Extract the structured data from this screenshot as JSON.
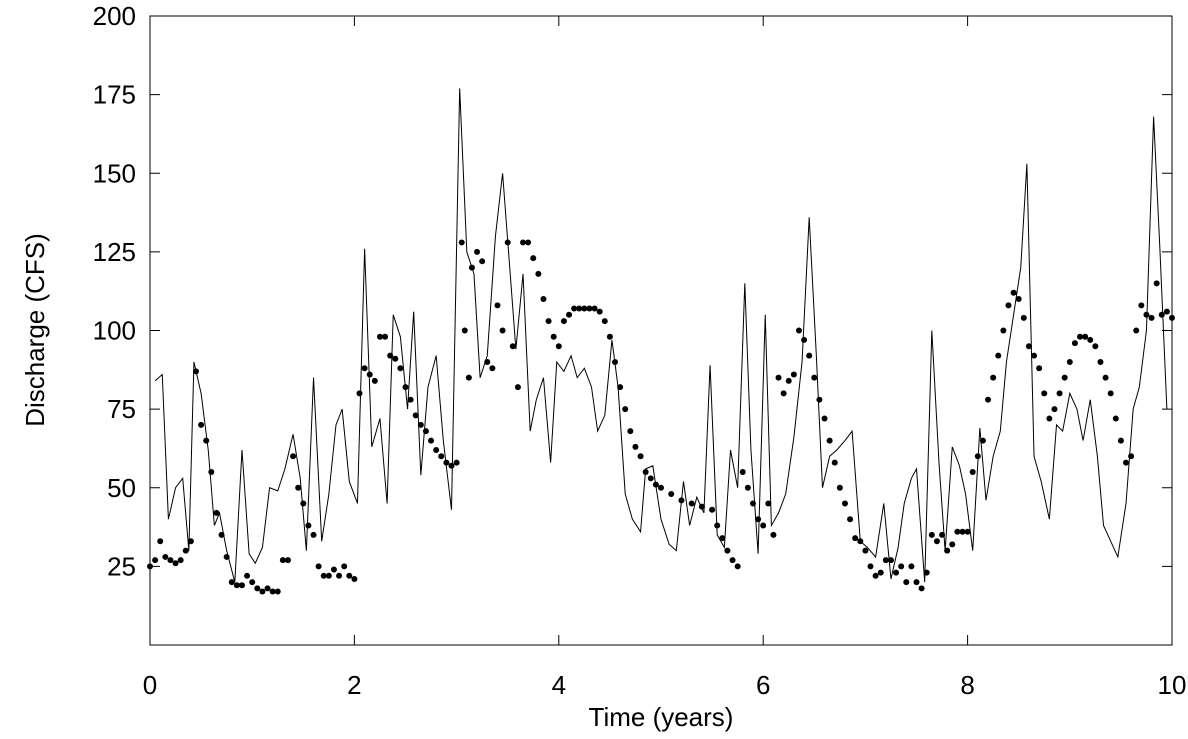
{
  "chart_data": {
    "type": "line",
    "x_label": "Time (years)",
    "y_label": "Discharge (CFS)",
    "xlim": [
      0,
      10
    ],
    "ylim": [
      0,
      200
    ],
    "xticks": [
      0,
      2,
      4,
      6,
      8,
      10
    ],
    "yticks": [
      25,
      50,
      75,
      100,
      125,
      150,
      175,
      200
    ],
    "series": [
      {
        "style": "line",
        "color": "#000000",
        "x": [
          0.05,
          0.12,
          0.18,
          0.25,
          0.32,
          0.38,
          0.43,
          0.5,
          0.57,
          0.63,
          0.68,
          0.75,
          0.83,
          0.9,
          0.97,
          1.03,
          1.1,
          1.17,
          1.25,
          1.32,
          1.4,
          1.47,
          1.53,
          1.6,
          1.68,
          1.75,
          1.82,
          1.88,
          1.95,
          2.03,
          2.1,
          2.17,
          2.25,
          2.32,
          2.38,
          2.45,
          2.52,
          2.58,
          2.65,
          2.72,
          2.8,
          2.87,
          2.95,
          3.03,
          3.1,
          3.17,
          3.23,
          3.3,
          3.38,
          3.45,
          3.52,
          3.58,
          3.65,
          3.72,
          3.78,
          3.85,
          3.92,
          3.98,
          4.05,
          4.12,
          4.18,
          4.25,
          4.32,
          4.38,
          4.45,
          4.52,
          4.58,
          4.65,
          4.72,
          4.8,
          4.85,
          4.92,
          5.0,
          5.08,
          5.15,
          5.22,
          5.28,
          5.35,
          5.42,
          5.48,
          5.55,
          5.62,
          5.68,
          5.75,
          5.82,
          5.88,
          5.95,
          6.02,
          6.08,
          6.15,
          6.22,
          6.3,
          6.38,
          6.45,
          6.52,
          6.58,
          6.65,
          6.72,
          6.8,
          6.87,
          6.95,
          7.02,
          7.1,
          7.18,
          7.25,
          7.32,
          7.38,
          7.45,
          7.5,
          7.58,
          7.65,
          7.72,
          7.78,
          7.85,
          7.92,
          7.98,
          8.05,
          8.12,
          8.18,
          8.25,
          8.32,
          8.38,
          8.45,
          8.52,
          8.58,
          8.65,
          8.72,
          8.8,
          8.87,
          8.93,
          9.0,
          9.07,
          9.13,
          9.2,
          9.27,
          9.33,
          9.4,
          9.47,
          9.55,
          9.62,
          9.68,
          9.75,
          9.82,
          9.88,
          9.95
        ],
        "values": [
          84,
          86,
          40,
          50,
          53,
          30,
          90,
          80,
          62,
          38,
          42,
          30,
          20,
          62,
          29,
          26,
          31,
          50,
          49,
          56,
          67,
          53,
          30,
          85,
          33,
          48,
          70,
          75,
          52,
          45,
          126,
          63,
          72,
          45,
          105,
          98,
          75,
          106,
          54,
          82,
          92,
          65,
          43,
          177,
          125,
          118,
          85,
          92,
          130,
          150,
          120,
          94,
          118,
          68,
          78,
          85,
          58,
          90,
          87,
          92,
          85,
          88,
          82,
          68,
          73,
          97,
          82,
          48,
          40,
          36,
          56,
          57,
          40,
          32,
          30,
          52,
          38,
          47,
          42,
          89,
          35,
          31,
          62,
          50,
          115,
          62,
          29,
          105,
          38,
          42,
          48,
          66,
          90,
          136,
          92,
          50,
          60,
          62,
          65,
          68,
          33,
          31,
          28,
          45,
          21,
          31,
          45,
          53,
          56,
          20,
          100,
          58,
          30,
          63,
          57,
          48,
          30,
          69,
          46,
          60,
          68,
          90,
          105,
          120,
          153,
          60,
          52,
          40,
          70,
          68,
          80,
          75,
          65,
          78,
          60,
          38,
          33,
          28,
          45,
          75,
          82,
          100,
          168,
          127,
          75
        ]
      },
      {
        "style": "markers",
        "color": "#000000",
        "x": [
          0.0,
          0.05,
          0.1,
          0.15,
          0.2,
          0.25,
          0.3,
          0.35,
          0.4,
          0.45,
          0.5,
          0.55,
          0.6,
          0.65,
          0.7,
          0.75,
          0.8,
          0.85,
          0.9,
          0.95,
          1.0,
          1.05,
          1.1,
          1.15,
          1.2,
          1.25,
          1.3,
          1.35,
          1.4,
          1.45,
          1.5,
          1.55,
          1.6,
          1.65,
          1.7,
          1.75,
          1.8,
          1.85,
          1.9,
          1.95,
          2.0,
          2.05,
          2.1,
          2.15,
          2.2,
          2.25,
          2.3,
          2.35,
          2.4,
          2.45,
          2.5,
          2.55,
          2.6,
          2.65,
          2.7,
          2.75,
          2.8,
          2.85,
          2.9,
          2.95,
          3.0,
          3.05,
          3.08,
          3.12,
          3.15,
          3.2,
          3.25,
          3.3,
          3.35,
          3.4,
          3.45,
          3.5,
          3.55,
          3.6,
          3.65,
          3.7,
          3.75,
          3.8,
          3.85,
          3.9,
          3.95,
          4.0,
          4.05,
          4.1,
          4.15,
          4.2,
          4.25,
          4.3,
          4.35,
          4.4,
          4.45,
          4.5,
          4.55,
          4.6,
          4.65,
          4.7,
          4.75,
          4.8,
          4.85,
          4.9,
          4.95,
          5.0,
          5.1,
          5.2,
          5.3,
          5.4,
          5.5,
          5.55,
          5.6,
          5.65,
          5.7,
          5.75,
          5.8,
          5.85,
          5.9,
          5.95,
          6.0,
          6.05,
          6.1,
          6.15,
          6.2,
          6.25,
          6.3,
          6.35,
          6.4,
          6.45,
          6.5,
          6.55,
          6.6,
          6.65,
          6.7,
          6.75,
          6.8,
          6.85,
          6.9,
          6.95,
          7.0,
          7.05,
          7.1,
          7.15,
          7.2,
          7.25,
          7.3,
          7.35,
          7.4,
          7.45,
          7.5,
          7.55,
          7.6,
          7.65,
          7.7,
          7.75,
          7.8,
          7.85,
          7.9,
          7.95,
          8.0,
          8.05,
          8.1,
          8.15,
          8.2,
          8.25,
          8.3,
          8.35,
          8.4,
          8.45,
          8.5,
          8.55,
          8.6,
          8.65,
          8.7,
          8.75,
          8.8,
          8.85,
          8.9,
          8.95,
          9.0,
          9.05,
          9.1,
          9.15,
          9.2,
          9.25,
          9.3,
          9.35,
          9.4,
          9.45,
          9.5,
          9.55,
          9.6,
          9.65,
          9.7,
          9.75,
          9.8,
          9.85,
          9.9,
          9.95,
          10.0
        ],
        "values": [
          25,
          27,
          33,
          28,
          27,
          26,
          27,
          30,
          33,
          87,
          70,
          65,
          55,
          42,
          35,
          28,
          20,
          19,
          19,
          22,
          20,
          18,
          17,
          18,
          17,
          17,
          27,
          27,
          60,
          50,
          45,
          38,
          35,
          25,
          22,
          22,
          24,
          22,
          25,
          22,
          21,
          80,
          88,
          86,
          84,
          98,
          98,
          92,
          91,
          88,
          82,
          78,
          73,
          70,
          68,
          65,
          62,
          60,
          58,
          57,
          58,
          128,
          100,
          85,
          120,
          125,
          122,
          90,
          88,
          108,
          100,
          128,
          95,
          82,
          128,
          128,
          123,
          118,
          110,
          103,
          98,
          95,
          103,
          105,
          107,
          107,
          107,
          107,
          107,
          106,
          103,
          98,
          90,
          82,
          75,
          68,
          63,
          60,
          55,
          53,
          51,
          50,
          48,
          46,
          45,
          44,
          43,
          38,
          34,
          30,
          27,
          25,
          55,
          50,
          45,
          40,
          38,
          45,
          35,
          85,
          80,
          84,
          86,
          100,
          97,
          92,
          85,
          78,
          72,
          65,
          58,
          50,
          45,
          40,
          34,
          33,
          30,
          25,
          22,
          23,
          27,
          27,
          23,
          25,
          20,
          25,
          20,
          18,
          23,
          35,
          33,
          35,
          30,
          32,
          36,
          36,
          36,
          55,
          60,
          65,
          78,
          85,
          92,
          100,
          108,
          112,
          110,
          104,
          95,
          92,
          88,
          80,
          72,
          75,
          80,
          85,
          90,
          96,
          98,
          98,
          97,
          95,
          90,
          85,
          80,
          72,
          65,
          58,
          60,
          100,
          108,
          105,
          104,
          115,
          105,
          106,
          104
        ]
      }
    ]
  }
}
